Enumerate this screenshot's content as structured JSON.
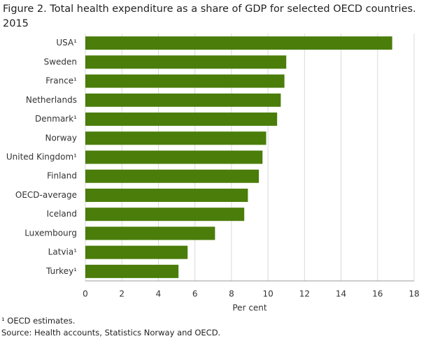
{
  "chart_data": {
    "type": "bar",
    "orientation": "horizontal",
    "title": [
      "Figure 2. Total health expenditure as a share of GDP for selected OECD countries.",
      "2015"
    ],
    "categories": [
      "USA¹",
      "Sweden",
      "France¹",
      "Netherlands",
      "Denmark¹",
      "Norway",
      "United Kingdom¹",
      "Finland",
      "OECD-average",
      "Iceland",
      "Luxembourg",
      "Latvia¹",
      "Turkey¹"
    ],
    "values": [
      16.8,
      11.0,
      10.9,
      10.7,
      10.5,
      9.9,
      9.7,
      9.5,
      8.9,
      8.7,
      7.1,
      5.6,
      5.1
    ],
    "color": "#4a7d0a",
    "xlim": [
      0,
      18
    ],
    "xticks": [
      0,
      2,
      4,
      6,
      8,
      10,
      12,
      14,
      16,
      18
    ],
    "xlabel": "Per cent",
    "grid": true,
    "notes": [
      "¹ OECD estimates.",
      "Source: Health accounts, Statistics Norway and OECD."
    ]
  }
}
